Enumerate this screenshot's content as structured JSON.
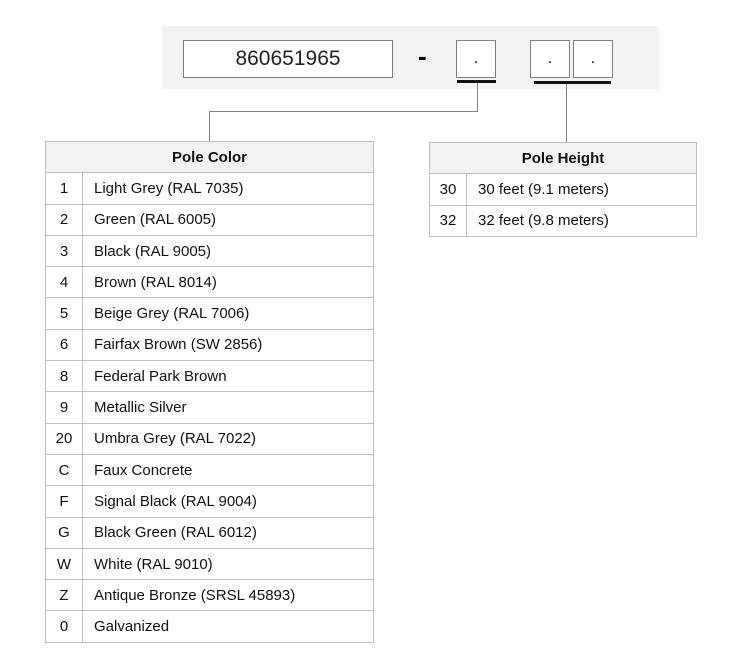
{
  "part_number": {
    "base": "860651965",
    "separator": "-",
    "color_slot": ".",
    "height_slots": [
      ".",
      "."
    ]
  },
  "pole_color": {
    "title": "Pole Color",
    "rows": [
      {
        "code": "1",
        "name": "Light Grey (RAL 7035)"
      },
      {
        "code": "2",
        "name": "Green (RAL 6005)"
      },
      {
        "code": "3",
        "name": "Black (RAL 9005)"
      },
      {
        "code": "4",
        "name": "Brown (RAL 8014)"
      },
      {
        "code": "5",
        "name": "Beige Grey (RAL 7006)"
      },
      {
        "code": "6",
        "name": "Fairfax Brown (SW 2856)"
      },
      {
        "code": "8",
        "name": "Federal Park Brown"
      },
      {
        "code": "9",
        "name": "Metallic Silver"
      },
      {
        "code": "20",
        "name": "Umbra Grey (RAL 7022)"
      },
      {
        "code": "C",
        "name": "Faux Concrete"
      },
      {
        "code": "F",
        "name": "Signal Black (RAL 9004)"
      },
      {
        "code": "G",
        "name": "Black Green (RAL 6012)"
      },
      {
        "code": "W",
        "name": "White (RAL 9010)"
      },
      {
        "code": "Z",
        "name": "Antique Bronze (SRSL 45893)"
      },
      {
        "code": "0",
        "name": "Galvanized"
      }
    ]
  },
  "pole_height": {
    "title": "Pole Height",
    "rows": [
      {
        "code": "30",
        "name": "30 feet (9.1 meters)"
      },
      {
        "code": "32",
        "name": "32 feet (9.8 meters)"
      }
    ]
  }
}
